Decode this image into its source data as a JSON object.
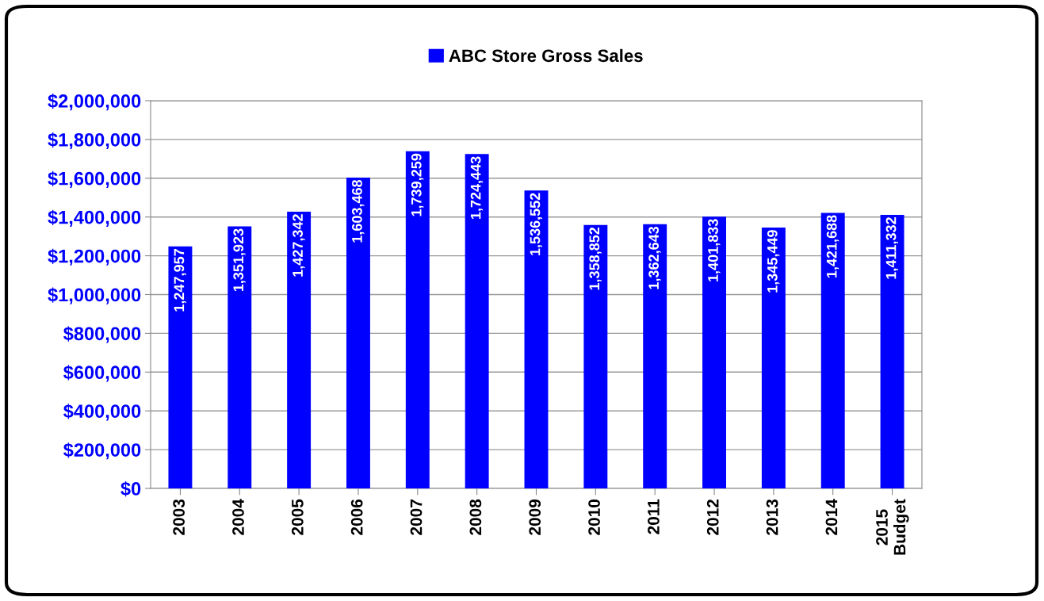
{
  "chart_data": {
    "type": "bar",
    "categories": [
      "2003",
      "2004",
      "2005",
      "2006",
      "2007",
      "2008",
      "2009",
      "2010",
      "2011",
      "2012",
      "2013",
      "2014",
      "2015\nBudget"
    ],
    "series": [
      {
        "name": "ABC Store Gross Sales",
        "color": "#0000ff",
        "values": [
          1247957,
          1351923,
          1427342,
          1603468,
          1739259,
          1724443,
          1536552,
          1358852,
          1362643,
          1401833,
          1345449,
          1421688,
          1411332
        ],
        "value_labels": [
          "1,247,957",
          "1,351,923",
          "1,427,342",
          "1,603,468",
          "1,739,259",
          "1,724,443",
          "1,536,552",
          "1,358,852",
          "1,362,643",
          "1,401,833",
          "1,345,449",
          "1,421,688",
          "1,411,332"
        ]
      }
    ],
    "ylim": [
      0,
      2000000
    ],
    "yticks": [
      {
        "value": 0,
        "label": "$0"
      },
      {
        "value": 200000,
        "label": "$200,000"
      },
      {
        "value": 400000,
        "label": "$400,000"
      },
      {
        "value": 600000,
        "label": "$600,000"
      },
      {
        "value": 800000,
        "label": "$800,000"
      },
      {
        "value": 1000000,
        "label": "$1,000,000"
      },
      {
        "value": 1200000,
        "label": "$1,200,000"
      },
      {
        "value": 1400000,
        "label": "$1,400,000"
      },
      {
        "value": 1600000,
        "label": "$1,600,000"
      },
      {
        "value": 1800000,
        "label": "$1,800,000"
      },
      {
        "value": 2000000,
        "label": "$2,000,000"
      }
    ],
    "grid": "y",
    "legend": "top"
  }
}
